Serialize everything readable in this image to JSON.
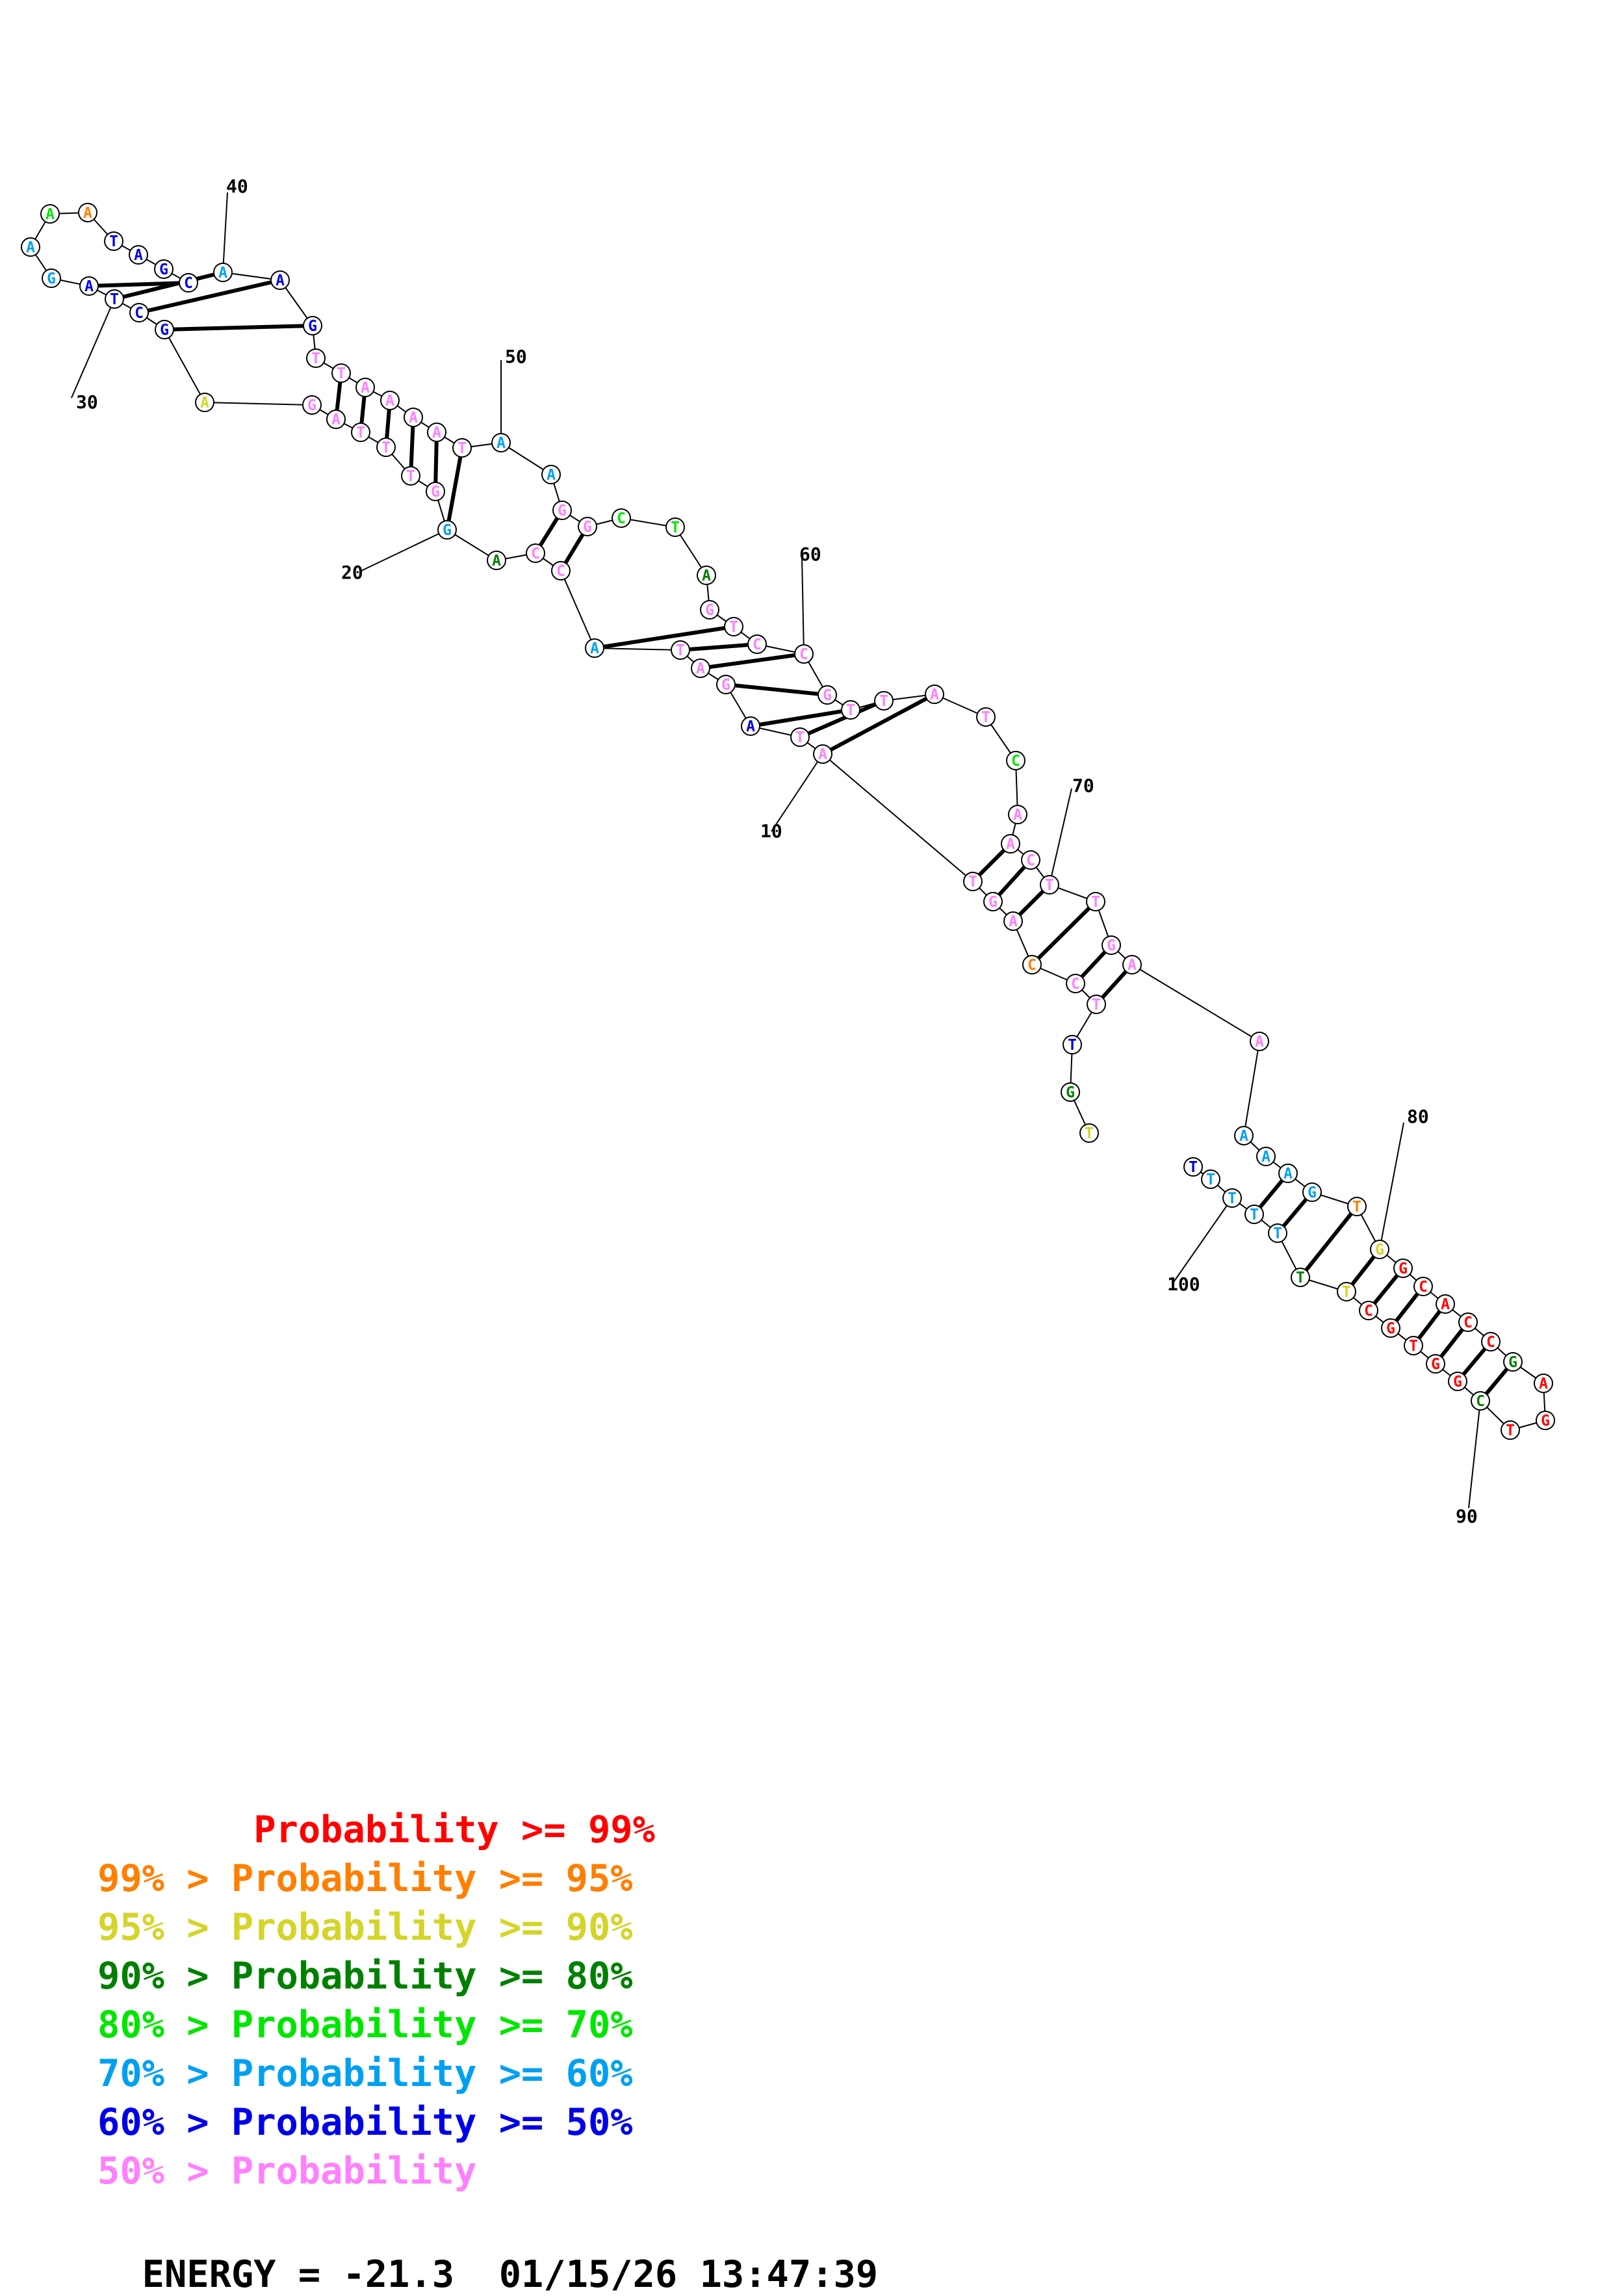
{
  "colors": {
    "p99": "#ff0000",
    "p95": "#ff7f00",
    "p90": "#d4d42a",
    "p80": "#008000",
    "p70": "#00e600",
    "p60": "#00a0f0",
    "p50": "#0000e6",
    "plt50": "#ff80ff"
  },
  "structure": {
    "nucleotides": [
      {
        "n": 1,
        "base": "T",
        "prob": "p90"
      },
      {
        "n": 2,
        "base": "G",
        "prob": "p80"
      },
      {
        "n": 3,
        "base": "T",
        "prob": "p50"
      },
      {
        "n": 4,
        "base": "T",
        "prob": "plt50"
      },
      {
        "n": 5,
        "base": "C",
        "prob": "plt50"
      },
      {
        "n": 6,
        "base": "C",
        "prob": "p95"
      },
      {
        "n": 7,
        "base": "A",
        "prob": "plt50"
      },
      {
        "n": 8,
        "base": "G",
        "prob": "plt50"
      },
      {
        "n": 9,
        "base": "T",
        "prob": "plt50"
      },
      {
        "n": 10,
        "base": "A",
        "prob": "plt50"
      },
      {
        "n": 11,
        "base": "T",
        "prob": "plt50"
      },
      {
        "n": 12,
        "base": "A",
        "prob": "p50"
      },
      {
        "n": 13,
        "base": "G",
        "prob": "plt50"
      },
      {
        "n": 14,
        "base": "A",
        "prob": "plt50"
      },
      {
        "n": 15,
        "base": "T",
        "prob": "plt50"
      },
      {
        "n": 16,
        "base": "A",
        "prob": "p60"
      },
      {
        "n": 17,
        "base": "C",
        "prob": "plt50"
      },
      {
        "n": 18,
        "base": "C",
        "prob": "plt50"
      },
      {
        "n": 19,
        "base": "A",
        "prob": "p80"
      },
      {
        "n": 20,
        "base": "G",
        "prob": "p60"
      },
      {
        "n": 21,
        "base": "G",
        "prob": "plt50"
      },
      {
        "n": 22,
        "base": "T",
        "prob": "plt50"
      },
      {
        "n": 23,
        "base": "T",
        "prob": "plt50"
      },
      {
        "n": 24,
        "base": "T",
        "prob": "plt50"
      },
      {
        "n": 25,
        "base": "A",
        "prob": "plt50"
      },
      {
        "n": 26,
        "base": "G",
        "prob": "plt50"
      },
      {
        "n": 27,
        "base": "A",
        "prob": "p90"
      },
      {
        "n": 28,
        "base": "G",
        "prob": "p50"
      },
      {
        "n": 29,
        "base": "C",
        "prob": "p50"
      },
      {
        "n": 30,
        "base": "T",
        "prob": "p50"
      },
      {
        "n": 31,
        "base": "A",
        "prob": "p50"
      },
      {
        "n": 32,
        "base": "G",
        "prob": "p60"
      },
      {
        "n": 33,
        "base": "A",
        "prob": "p60"
      },
      {
        "n": 34,
        "base": "A",
        "prob": "p70"
      },
      {
        "n": 35,
        "base": "A",
        "prob": "p95"
      },
      {
        "n": 36,
        "base": "T",
        "prob": "p50"
      },
      {
        "n": 37,
        "base": "A",
        "prob": "p50"
      },
      {
        "n": 38,
        "base": "G",
        "prob": "p50"
      },
      {
        "n": 39,
        "base": "C",
        "prob": "p50"
      },
      {
        "n": 40,
        "base": "A",
        "prob": "p60"
      },
      {
        "n": 41,
        "base": "A",
        "prob": "p50"
      },
      {
        "n": 42,
        "base": "G",
        "prob": "p50"
      },
      {
        "n": 43,
        "base": "T",
        "prob": "plt50"
      },
      {
        "n": 44,
        "base": "T",
        "prob": "plt50"
      },
      {
        "n": 45,
        "base": "A",
        "prob": "plt50"
      },
      {
        "n": 46,
        "base": "A",
        "prob": "plt50"
      },
      {
        "n": 47,
        "base": "A",
        "prob": "plt50"
      },
      {
        "n": 48,
        "base": "A",
        "prob": "plt50"
      },
      {
        "n": 49,
        "base": "T",
        "prob": "plt50"
      },
      {
        "n": 50,
        "base": "A",
        "prob": "p60"
      },
      {
        "n": 51,
        "base": "A",
        "prob": "p60"
      },
      {
        "n": 52,
        "base": "G",
        "prob": "plt50"
      },
      {
        "n": 53,
        "base": "G",
        "prob": "plt50"
      },
      {
        "n": 54,
        "base": "C",
        "prob": "p70"
      },
      {
        "n": 55,
        "base": "T",
        "prob": "p70"
      },
      {
        "n": 56,
        "base": "A",
        "prob": "p80"
      },
      {
        "n": 57,
        "base": "G",
        "prob": "plt50"
      },
      {
        "n": 58,
        "base": "T",
        "prob": "plt50"
      },
      {
        "n": 59,
        "base": "C",
        "prob": "plt50"
      },
      {
        "n": 60,
        "base": "C",
        "prob": "plt50"
      },
      {
        "n": 61,
        "base": "G",
        "prob": "plt50"
      },
      {
        "n": 62,
        "base": "T",
        "prob": "plt50"
      },
      {
        "n": 63,
        "base": "T",
        "prob": "plt50"
      },
      {
        "n": 64,
        "base": "A",
        "prob": "plt50"
      },
      {
        "n": 65,
        "base": "T",
        "prob": "plt50"
      },
      {
        "n": 66,
        "base": "C",
        "prob": "p70"
      },
      {
        "n": 67,
        "base": "A",
        "prob": "plt50"
      },
      {
        "n": 68,
        "base": "A",
        "prob": "plt50"
      },
      {
        "n": 69,
        "base": "C",
        "prob": "plt50"
      },
      {
        "n": 70,
        "base": "T",
        "prob": "plt50"
      },
      {
        "n": 71,
        "base": "T",
        "prob": "plt50"
      },
      {
        "n": 72,
        "base": "G",
        "prob": "plt50"
      },
      {
        "n": 73,
        "base": "A",
        "prob": "plt50"
      },
      {
        "n": 74,
        "base": "A",
        "prob": "plt50"
      },
      {
        "n": 75,
        "base": "A",
        "prob": "p60"
      },
      {
        "n": 76,
        "base": "A",
        "prob": "p60"
      },
      {
        "n": 77,
        "base": "A",
        "prob": "p60"
      },
      {
        "n": 78,
        "base": "G",
        "prob": "p60"
      },
      {
        "n": 79,
        "base": "T",
        "prob": "p95"
      },
      {
        "n": 80,
        "base": "G",
        "prob": "p90"
      },
      {
        "n": 81,
        "base": "G",
        "prob": "p99"
      },
      {
        "n": 82,
        "base": "C",
        "prob": "p99"
      },
      {
        "n": 83,
        "base": "A",
        "prob": "p99"
      },
      {
        "n": 84,
        "base": "C",
        "prob": "p99"
      },
      {
        "n": 85,
        "base": "C",
        "prob": "p99"
      },
      {
        "n": 86,
        "base": "G",
        "prob": "p80"
      },
      {
        "n": 87,
        "base": "A",
        "prob": "p99"
      },
      {
        "n": 88,
        "base": "G",
        "prob": "p99"
      },
      {
        "n": 89,
        "base": "T",
        "prob": "p99"
      },
      {
        "n": 90,
        "base": "C",
        "prob": "p80"
      },
      {
        "n": 91,
        "base": "G",
        "prob": "p99"
      },
      {
        "n": 92,
        "base": "G",
        "prob": "p99"
      },
      {
        "n": 93,
        "base": "T",
        "prob": "p99"
      },
      {
        "n": 94,
        "base": "G",
        "prob": "p99"
      },
      {
        "n": 95,
        "base": "C",
        "prob": "p99"
      },
      {
        "n": 96,
        "base": "T",
        "prob": "p90"
      },
      {
        "n": 97,
        "base": "T",
        "prob": "p80"
      },
      {
        "n": 98,
        "base": "T",
        "prob": "p60"
      },
      {
        "n": 99,
        "base": "T",
        "prob": "p60"
      },
      {
        "n": 100,
        "base": "T",
        "prob": "p60"
      },
      {
        "n": 101,
        "base": "T",
        "prob": "p60"
      },
      {
        "n": 102,
        "base": "T",
        "prob": "p50"
      }
    ],
    "pairs": [
      [
        10,
        64
      ],
      [
        11,
        63
      ],
      [
        12,
        62
      ],
      [
        13,
        61
      ],
      [
        14,
        60
      ],
      [
        15,
        59
      ],
      [
        16,
        58
      ],
      [
        17,
        53
      ],
      [
        18,
        52
      ],
      [
        20,
        49
      ],
      [
        21,
        48
      ],
      [
        22,
        47
      ],
      [
        23,
        46
      ],
      [
        24,
        45
      ],
      [
        25,
        44
      ],
      [
        28,
        42
      ],
      [
        29,
        41
      ],
      [
        30,
        40
      ],
      [
        31,
        39
      ],
      [
        4,
        73
      ],
      [
        5,
        72
      ],
      [
        6,
        71
      ],
      [
        7,
        70
      ],
      [
        8,
        69
      ],
      [
        9,
        68
      ],
      [
        77,
        99
      ],
      [
        78,
        98
      ],
      [
        79,
        97
      ],
      [
        80,
        96
      ],
      [
        81,
        95
      ],
      [
        82,
        94
      ],
      [
        83,
        93
      ],
      [
        84,
        92
      ],
      [
        85,
        91
      ],
      [
        86,
        90
      ]
    ],
    "tick_labels": [
      {
        "n": 10,
        "text": "10"
      },
      {
        "n": 20,
        "text": "20"
      },
      {
        "n": 30,
        "text": "30"
      },
      {
        "n": 40,
        "text": "40"
      },
      {
        "n": 50,
        "text": "50"
      },
      {
        "n": 60,
        "text": "60"
      },
      {
        "n": 70,
        "text": "70"
      },
      {
        "n": 80,
        "text": "80"
      },
      {
        "n": 90,
        "text": "90"
      },
      {
        "n": 100,
        "text": "100"
      }
    ]
  },
  "legend": [
    {
      "text": "       Probability >= 99%",
      "color": "p99"
    },
    {
      "text": "99% > Probability >= 95%",
      "color": "p95"
    },
    {
      "text": "95% > Probability >= 90%",
      "color": "p90"
    },
    {
      "text": "90% > Probability >= 80%",
      "color": "p80"
    },
    {
      "text": "80% > Probability >= 70%",
      "color": "p70"
    },
    {
      "text": "70% > Probability >= 60%",
      "color": "p60"
    },
    {
      "text": "60% > Probability >= 50%",
      "color": "p50"
    },
    {
      "text": "50% > Probability",
      "color": "plt50"
    }
  ],
  "footer": {
    "energy": "ENERGY = -21.3  01/15/26 13:47:39"
  }
}
